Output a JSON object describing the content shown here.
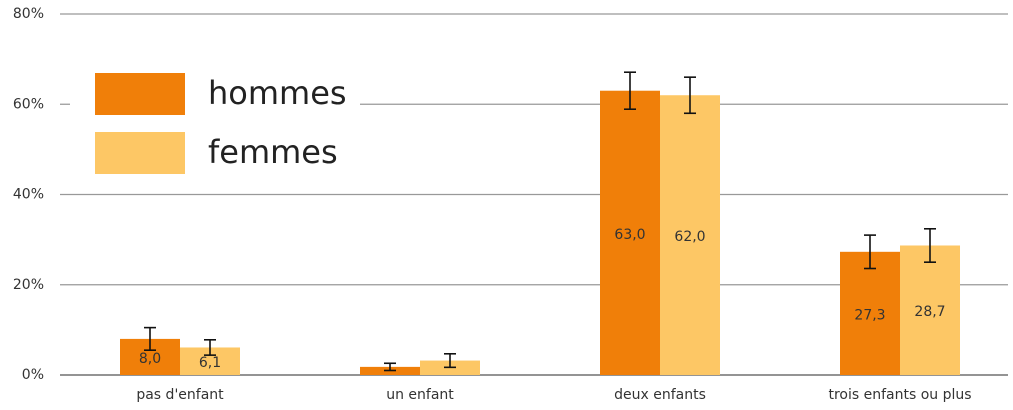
{
  "chart_data": {
    "type": "bar",
    "categories": [
      "pas d'enfant",
      "un enfant",
      "deux enfants",
      "trois enfants ou plus"
    ],
    "series": [
      {
        "name": "hommes",
        "color": "#f07f09",
        "values": [
          8.0,
          1.8,
          63.0,
          27.3
        ],
        "value_labels": [
          "8,0",
          null,
          "63,0",
          "27,3"
        ],
        "errors": [
          2.5,
          0.8,
          4.1,
          3.7
        ]
      },
      {
        "name": "femmes",
        "color": "#fdc765",
        "values": [
          6.1,
          3.2,
          62.0,
          28.7
        ],
        "value_labels": [
          "6,1",
          null,
          "62,0",
          "28,7"
        ],
        "errors": [
          1.7,
          1.5,
          4.0,
          3.7
        ]
      }
    ],
    "ylim": [
      0,
      80
    ],
    "yticks": [
      {
        "value": 0,
        "label": "0%"
      },
      {
        "value": 20,
        "label": "20%"
      },
      {
        "value": 40,
        "label": "40%"
      },
      {
        "value": 60,
        "label": "60%"
      },
      {
        "value": 80,
        "label": "80%"
      }
    ],
    "grid": true,
    "legend": "upper left"
  }
}
